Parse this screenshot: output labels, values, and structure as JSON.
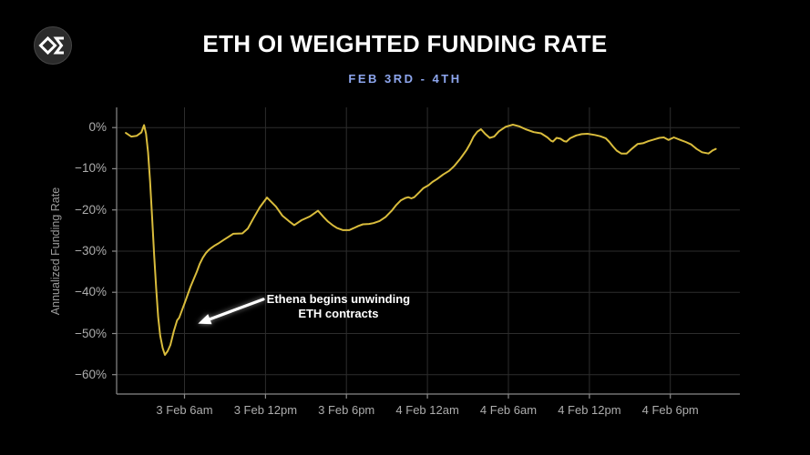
{
  "header": {
    "title": "ETH OI WEIGHTED FUNDING RATE",
    "subtitle": "FEB 3RD - 4TH"
  },
  "logo": {
    "glyph": "diamond-sigma"
  },
  "colors": {
    "background": "#000000",
    "title": "#ffffff",
    "subtitle_accent": "#8da6ee",
    "line": "#d9bc3c",
    "grid": "#2d2d2d",
    "axis": "#8a8a8a",
    "tick_label": "#adadad",
    "axis_title": "#9a9a9a",
    "annotation": "#ffffff"
  },
  "chart_data": {
    "type": "line",
    "title": "ETH OI WEIGHTED FUNDING RATE",
    "subtitle": "FEB 3RD - 4TH",
    "ylabel": "Annualized Funding Rate",
    "xlabel": "",
    "grid": true,
    "x_unit": "hours since 3 Feb 12am",
    "x_domain_hours": [
      0.97,
      47.15
    ],
    "y_domain_pct": [
      4.9,
      -64.7
    ],
    "x_ticks": [
      {
        "hour": 6,
        "label": "3 Feb 6am"
      },
      {
        "hour": 12,
        "label": "3 Feb 12pm"
      },
      {
        "hour": 18,
        "label": "3 Feb 6pm"
      },
      {
        "hour": 24,
        "label": "4 Feb 12am"
      },
      {
        "hour": 30,
        "label": "4 Feb 6am"
      },
      {
        "hour": 36,
        "label": "4 Feb 12pm"
      },
      {
        "hour": 42,
        "label": "4 Feb 6pm"
      }
    ],
    "y_ticks": [
      {
        "value": 0,
        "label": "0%"
      },
      {
        "value": -10,
        "label": "−10%"
      },
      {
        "value": -20,
        "label": "−20%"
      },
      {
        "value": -30,
        "label": "−30%"
      },
      {
        "value": -40,
        "label": "−40%"
      },
      {
        "value": -50,
        "label": "−50%"
      },
      {
        "value": -60,
        "label": "−60%"
      }
    ],
    "series": [
      {
        "name": "ETH OI weighted funding rate",
        "color": "#d9bc3c",
        "points_hour_pct": [
          [
            1.65,
            -1.3
          ],
          [
            2.05,
            -2.2
          ],
          [
            2.46,
            -2.0
          ],
          [
            2.8,
            -1.2
          ],
          [
            3.0,
            0.6
          ],
          [
            3.15,
            -1.5
          ],
          [
            3.3,
            -6.0
          ],
          [
            3.45,
            -13.0
          ],
          [
            3.6,
            -22.0
          ],
          [
            3.75,
            -31.0
          ],
          [
            3.9,
            -39.0
          ],
          [
            4.05,
            -46.0
          ],
          [
            4.2,
            -50.5
          ],
          [
            4.38,
            -53.5
          ],
          [
            4.55,
            -55.2
          ],
          [
            4.75,
            -54.3
          ],
          [
            4.95,
            -52.8
          ],
          [
            5.2,
            -49.5
          ],
          [
            5.45,
            -46.8
          ],
          [
            5.6,
            -46.2
          ],
          [
            5.83,
            -44.2
          ],
          [
            6.05,
            -42.3
          ],
          [
            6.24,
            -40.5
          ],
          [
            6.45,
            -38.6
          ],
          [
            6.68,
            -36.8
          ],
          [
            6.91,
            -35.0
          ],
          [
            7.13,
            -33.1
          ],
          [
            7.36,
            -31.6
          ],
          [
            7.58,
            -30.5
          ],
          [
            7.8,
            -29.7
          ],
          [
            8.03,
            -29.1
          ],
          [
            8.26,
            -28.6
          ],
          [
            8.48,
            -28.2
          ],
          [
            8.94,
            -27.2
          ],
          [
            9.61,
            -25.8
          ],
          [
            10.29,
            -25.7
          ],
          [
            10.69,
            -24.5
          ],
          [
            11.1,
            -22.1
          ],
          [
            11.57,
            -19.4
          ],
          [
            12.11,
            -17.0
          ],
          [
            12.78,
            -19.2
          ],
          [
            13.25,
            -21.4
          ],
          [
            13.73,
            -22.7
          ],
          [
            14.13,
            -23.7
          ],
          [
            14.67,
            -22.5
          ],
          [
            15.28,
            -21.6
          ],
          [
            15.89,
            -20.2
          ],
          [
            16.3,
            -21.7
          ],
          [
            16.63,
            -22.8
          ],
          [
            16.97,
            -23.7
          ],
          [
            17.3,
            -24.4
          ],
          [
            17.75,
            -24.9
          ],
          [
            18.2,
            -24.9
          ],
          [
            18.55,
            -24.4
          ],
          [
            18.88,
            -23.9
          ],
          [
            19.22,
            -23.5
          ],
          [
            19.67,
            -23.4
          ],
          [
            20.0,
            -23.2
          ],
          [
            20.45,
            -22.7
          ],
          [
            20.9,
            -21.7
          ],
          [
            21.35,
            -20.2
          ],
          [
            21.69,
            -18.8
          ],
          [
            22.02,
            -17.7
          ],
          [
            22.36,
            -17.1
          ],
          [
            22.58,
            -16.9
          ],
          [
            22.81,
            -17.2
          ],
          [
            23.03,
            -16.9
          ],
          [
            23.37,
            -15.8
          ],
          [
            23.7,
            -14.7
          ],
          [
            24.09,
            -14.0
          ],
          [
            24.38,
            -13.2
          ],
          [
            24.71,
            -12.5
          ],
          [
            25.16,
            -11.4
          ],
          [
            25.61,
            -10.5
          ],
          [
            26.0,
            -9.3
          ],
          [
            26.45,
            -7.5
          ],
          [
            26.89,
            -5.5
          ],
          [
            27.15,
            -4.0
          ],
          [
            27.42,
            -2.2
          ],
          [
            27.7,
            -1.0
          ],
          [
            27.97,
            -0.4
          ],
          [
            28.3,
            -1.6
          ],
          [
            28.62,
            -2.5
          ],
          [
            28.95,
            -2.2
          ],
          [
            29.3,
            -0.9
          ],
          [
            29.8,
            0.2
          ],
          [
            30.33,
            0.7
          ],
          [
            30.8,
            0.3
          ],
          [
            31.27,
            -0.4
          ],
          [
            31.88,
            -1.1
          ],
          [
            32.42,
            -1.4
          ],
          [
            32.89,
            -2.4
          ],
          [
            33.16,
            -3.2
          ],
          [
            33.3,
            -3.4
          ],
          [
            33.57,
            -2.5
          ],
          [
            33.85,
            -2.7
          ],
          [
            34.13,
            -3.3
          ],
          [
            34.3,
            -3.4
          ],
          [
            34.58,
            -2.6
          ],
          [
            35.03,
            -1.9
          ],
          [
            35.43,
            -1.6
          ],
          [
            35.86,
            -1.5
          ],
          [
            36.4,
            -1.8
          ],
          [
            36.8,
            -2.1
          ],
          [
            37.21,
            -2.6
          ],
          [
            37.48,
            -3.5
          ],
          [
            37.75,
            -4.6
          ],
          [
            38.02,
            -5.6
          ],
          [
            38.36,
            -6.3
          ],
          [
            38.76,
            -6.3
          ],
          [
            39.16,
            -5.1
          ],
          [
            39.57,
            -4.0
          ],
          [
            39.97,
            -3.8
          ],
          [
            40.38,
            -3.3
          ],
          [
            40.78,
            -2.9
          ],
          [
            41.19,
            -2.5
          ],
          [
            41.52,
            -2.4
          ],
          [
            41.86,
            -3.0
          ],
          [
            42.26,
            -2.4
          ],
          [
            42.74,
            -3.0
          ],
          [
            43.14,
            -3.5
          ],
          [
            43.54,
            -4.1
          ],
          [
            43.95,
            -5.2
          ],
          [
            44.35,
            -6.0
          ],
          [
            44.83,
            -6.3
          ],
          [
            45.16,
            -5.5
          ],
          [
            45.37,
            -5.2
          ]
        ]
      }
    ],
    "annotation": {
      "lines": [
        "Ethena begins unwinding",
        "ETH contracts"
      ],
      "text_center": {
        "hour": 17.4,
        "pct": -43.3
      },
      "arrow_tail": {
        "hour": 11.84,
        "pct": -41.7
      },
      "arrow_tip": {
        "hour": 7.0,
        "pct": -47.6
      }
    }
  }
}
